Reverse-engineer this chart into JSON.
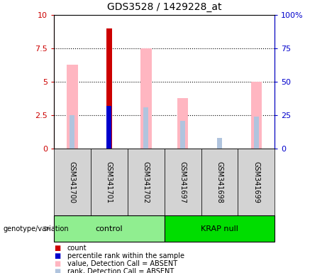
{
  "title": "GDS3528 / 1429228_at",
  "samples": [
    "GSM341700",
    "GSM341701",
    "GSM341702",
    "GSM341697",
    "GSM341698",
    "GSM341699"
  ],
  "group_colors": [
    "#90ee90",
    "#00dd00"
  ],
  "ylim_left": [
    0,
    10
  ],
  "ylim_right": [
    0,
    100
  ],
  "yticks_left": [
    0,
    2.5,
    5.0,
    7.5,
    10
  ],
  "yticks_right": [
    0,
    25,
    50,
    75,
    100
  ],
  "ytick_labels_left": [
    "0",
    "2.5",
    "5",
    "7.5",
    "10"
  ],
  "ytick_labels_right": [
    "0",
    "25",
    "50",
    "75",
    "100%"
  ],
  "pink_values": [
    6.3,
    0.0,
    7.5,
    3.8,
    0.0,
    5.0
  ],
  "light_blue_rank": [
    2.5,
    0.0,
    3.0,
    2.0,
    0.0,
    2.4
  ],
  "red_values": [
    0.0,
    9.0,
    0.0,
    0.0,
    0.0,
    0.0
  ],
  "blue_values": [
    0.0,
    3.2,
    0.0,
    0.0,
    0.0,
    0.0
  ],
  "lb2_rank": [
    0.0,
    0.0,
    3.1,
    2.1,
    0.8,
    0.0
  ],
  "left_yaxis_color": "#cc0000",
  "right_yaxis_color": "#0000cc",
  "legend_items": [
    "count",
    "percentile rank within the sample",
    "value, Detection Call = ABSENT",
    "rank, Detection Call = ABSENT"
  ],
  "legend_colors": [
    "#cc0000",
    "#0000cc",
    "#ffb6c1",
    "#b0c4de"
  ],
  "legend_square_size": 7,
  "bar_width": 0.3
}
